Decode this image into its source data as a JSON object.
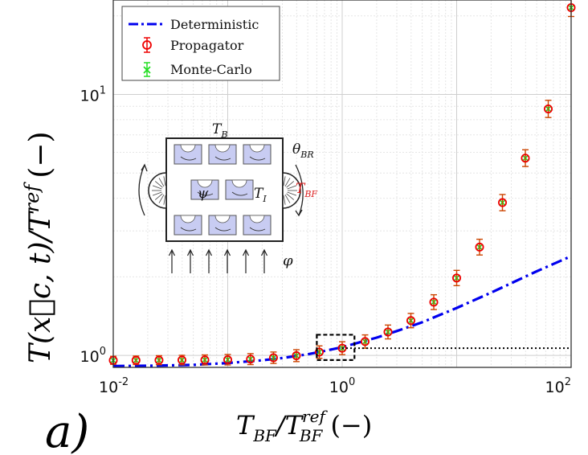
{
  "panel_label": "a)",
  "chart_data": {
    "type": "scatter",
    "xscale": "log",
    "yscale": "log",
    "xlim": [
      0.01,
      100
    ],
    "ylim": [
      0.9,
      23
    ],
    "grid": true,
    "legend_position": "top-left",
    "xlabel_main": "T",
    "xlabel_sub": "BF",
    "xlabel_div": "/",
    "xlabel_sup": "ref",
    "xlabel_unit": "(−)",
    "ylabel_text": "T(x⃗c, t)/T",
    "ylabel_sup": "ref",
    "ylabel_unit": "(−)",
    "x_ticks": [
      {
        "value": 0.01,
        "base": "10",
        "exp": "-2"
      },
      {
        "value": 1,
        "base": "10",
        "exp": "0"
      },
      {
        "value": 100,
        "base": "10",
        "exp": "2"
      }
    ],
    "y_ticks": [
      {
        "value": 1,
        "base": "10",
        "exp": "0"
      },
      {
        "value": 10,
        "base": "10",
        "exp": "1"
      }
    ],
    "series": [
      {
        "name": "Deterministic",
        "style": "dash-dot",
        "color": "#0000ee",
        "x": [
          0.01,
          0.02,
          0.05,
          0.1,
          0.2,
          0.3,
          0.5,
          0.7,
          1,
          1.5,
          2,
          3,
          5,
          10,
          20,
          50,
          100
        ],
        "y": [
          0.91,
          0.913,
          0.92,
          0.935,
          0.958,
          0.977,
          1.01,
          1.04,
          1.075,
          1.13,
          1.17,
          1.24,
          1.34,
          1.52,
          1.74,
          2.1,
          2.4
        ]
      },
      {
        "name": "Propagator",
        "style": "circle-errorbar",
        "color": "#ee0000",
        "x": [
          0.01,
          0.0158,
          0.0251,
          0.0398,
          0.0631,
          0.1,
          0.158,
          0.251,
          0.398,
          0.631,
          1,
          1.585,
          2.512,
          3.981,
          6.31,
          10,
          15.85,
          25.12,
          39.81,
          63.1,
          100
        ],
        "y": [
          0.958,
          0.958,
          0.959,
          0.96,
          0.961,
          0.963,
          0.968,
          0.98,
          0.998,
          1.03,
          1.066,
          1.13,
          1.23,
          1.36,
          1.6,
          1.98,
          2.6,
          3.85,
          5.7,
          8.8,
          21.5
        ]
      },
      {
        "name": "Monte-Carlo",
        "style": "x-errorbar",
        "color": "#22dd22",
        "x": [
          0.01,
          0.0158,
          0.0251,
          0.0398,
          0.0631,
          0.1,
          0.158,
          0.251,
          0.398,
          0.631,
          1,
          1.585,
          2.512,
          3.981,
          6.31,
          10,
          15.85,
          25.12,
          39.81,
          63.1,
          100
        ],
        "y": [
          0.958,
          0.958,
          0.959,
          0.96,
          0.961,
          0.963,
          0.968,
          0.98,
          0.998,
          1.03,
          1.066,
          1.13,
          1.23,
          1.36,
          1.6,
          1.98,
          2.6,
          3.85,
          5.7,
          8.8,
          21.5
        ]
      }
    ],
    "reference_line": {
      "y": 1.066,
      "x_from": 1,
      "style": "dotted"
    },
    "highlight_box": {
      "x_from": 0.6,
      "x_to": 1.28,
      "y_from": 0.96,
      "y_to": 1.2,
      "style": "dashed"
    }
  },
  "inset": {
    "labels": {
      "top_main": "T",
      "top_sub": "B",
      "center_main": "T",
      "center_sub": "I",
      "right_red_main": "T",
      "right_red_sub": "BF",
      "theta_main": "θ",
      "theta_sub": "BR",
      "psi": "ψ",
      "phi": "φ"
    },
    "colors": {
      "panel": "#c8ccf2",
      "panel_border": "#333333",
      "highlight": "#dd2222"
    }
  }
}
